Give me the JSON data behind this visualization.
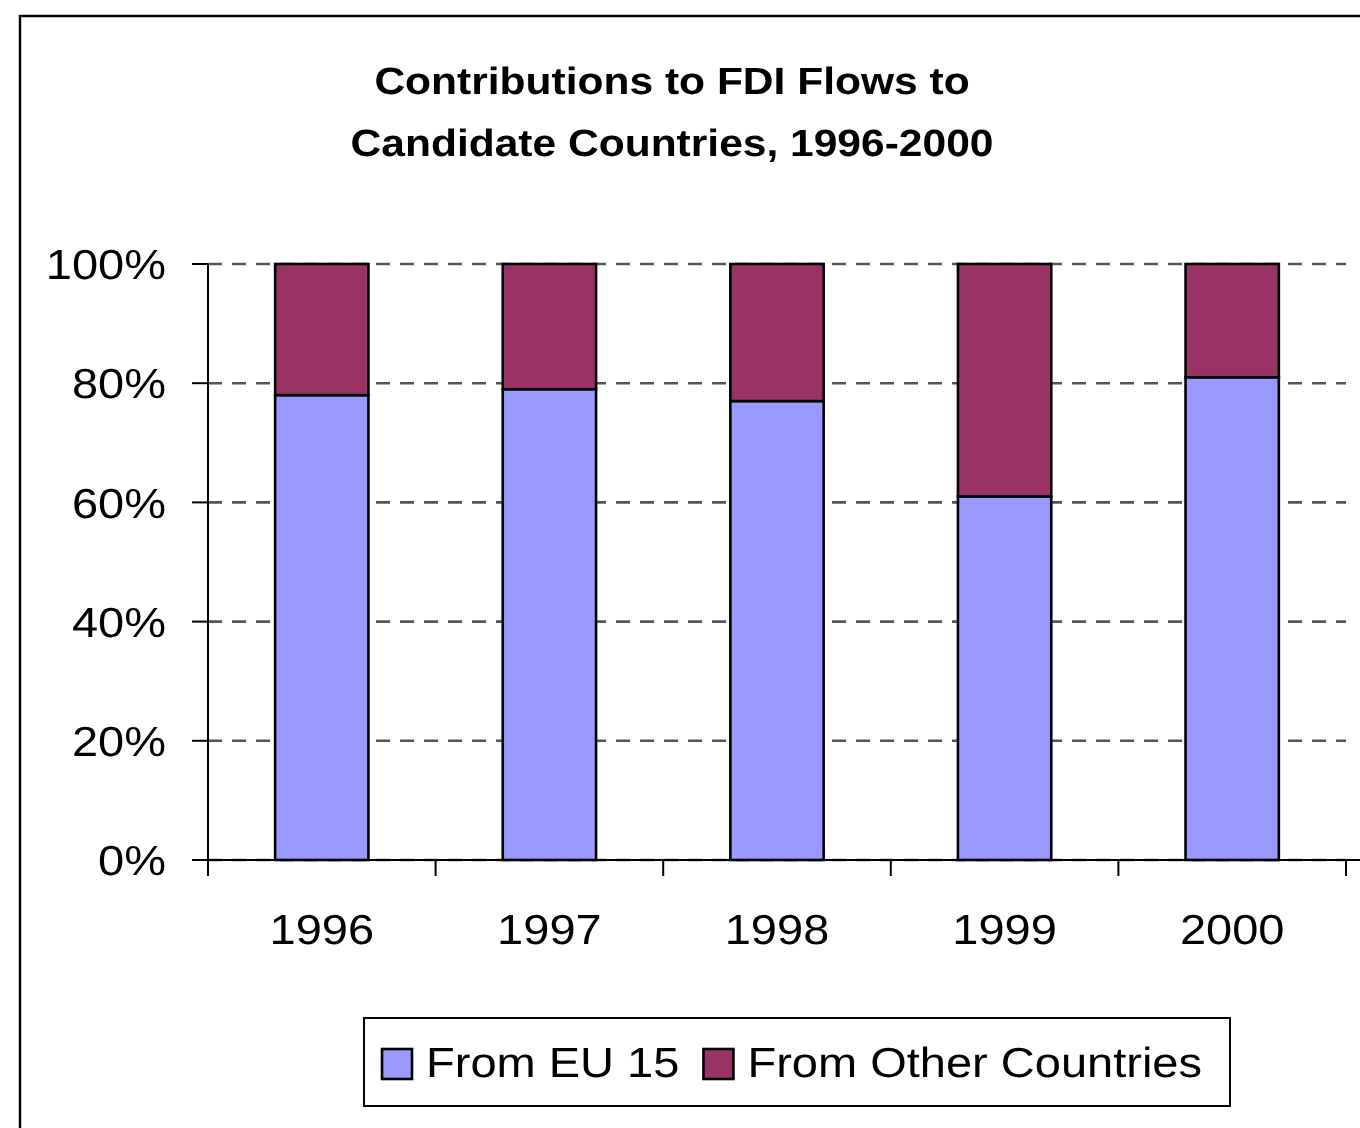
{
  "chart_data": {
    "type": "bar",
    "title": "Contributions to FDI Flows to\nCandidate Countries, 1996-2000",
    "categories": [
      "1996",
      "1997",
      "1998",
      "1999",
      "2000"
    ],
    "series": [
      {
        "name": "From EU 15",
        "color": "#9999ff",
        "values": [
          78,
          79,
          77,
          61,
          81
        ]
      },
      {
        "name": "From Other Countries",
        "color": "#993366",
        "values": [
          22,
          21,
          23,
          39,
          19
        ]
      }
    ],
    "stacked": true,
    "ylim": [
      0,
      100
    ],
    "yticks": [
      {
        "value": 0,
        "label": "0%"
      },
      {
        "value": 20,
        "label": "20%"
      },
      {
        "value": 40,
        "label": "40%"
      },
      {
        "value": 60,
        "label": "60%"
      },
      {
        "value": 80,
        "label": "80%"
      },
      {
        "value": 100,
        "label": "100%"
      }
    ],
    "grid": "y",
    "legend": "bottom"
  }
}
